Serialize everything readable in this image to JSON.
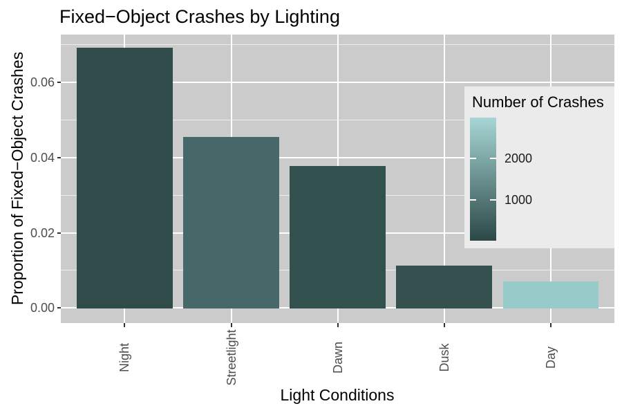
{
  "title": "Fixed−Object Crashes by Lighting",
  "chart_data": {
    "type": "bar",
    "title": "Fixed−Object Crashes by Lighting",
    "xlabel": "Light Conditions",
    "ylabel": "Proportion of Fixed−Object Crashes",
    "categories": [
      "Night",
      "Streetlight",
      "Dawn",
      "Dusk",
      "Day"
    ],
    "values": [
      0.0693,
      0.0455,
      0.0378,
      0.0113,
      0.007
    ],
    "bar_fill_colors": [
      "#2F4C4B",
      "#476869",
      "#31504E",
      "#33504F",
      "#97CBC9"
    ],
    "ylim": [
      -0.0035,
      0.0728
    ],
    "y_major_ticks": [
      0,
      0.02,
      0.04,
      0.06
    ],
    "y_major_tick_labels": [
      "0.00",
      "0.02",
      "0.04",
      "0.06"
    ],
    "y_minor_ticks": [
      0.01,
      0.03,
      0.05,
      0.07
    ],
    "grid": {
      "major": "on",
      "minor": "horizontal-only",
      "vertical_major_at_category_centers": true
    },
    "legend": {
      "title": "Number of Crashes",
      "style": "continuous-gradient",
      "position": "inside-top-right",
      "limits": [
        0,
        3000
      ],
      "ticks": [
        1000,
        2000
      ],
      "tick_labels": [
        "1000",
        "2000"
      ],
      "gradient_low_color": "#2B4847",
      "gradient_high_color": "#A7D7D5"
    },
    "colors": {
      "panel_background": "#CBCBCB",
      "grid_major": "#FFFFFF",
      "grid_minor": "rgba(255,255,255,0.65)",
      "legend_background": "#EBEBEB",
      "outer_background": "#FFFFFF",
      "axis_text": "#4d4d4d",
      "title_text": "#000000"
    }
  }
}
